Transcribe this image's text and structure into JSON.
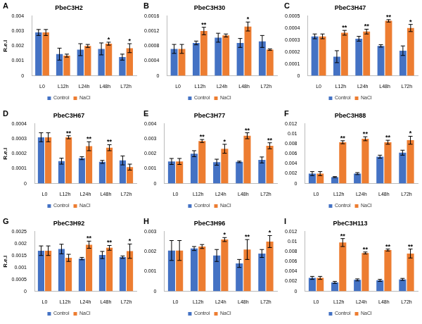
{
  "chart_data": [
    {
      "type": "bar",
      "panel": "A",
      "title": "PbeC3H2",
      "y_label": "R.e.l",
      "categories": [
        "L0",
        "L12h",
        "L24h",
        "L48h",
        "L72h"
      ],
      "series": [
        {
          "name": "Control",
          "color": "#4472c4",
          "values": [
            0.0029,
            0.00145,
            0.00175,
            0.0018,
            0.00125
          ],
          "errors": [
            0.0002,
            0.0004,
            0.0004,
            0.0004,
            0.0002
          ]
        },
        {
          "name": "NaCl",
          "color": "#ed7d31",
          "values": [
            0.0029,
            0.00135,
            0.002,
            0.00215,
            0.00185
          ],
          "errors": [
            0.0002,
            0.0001,
            0.0001,
            0.0001,
            0.0003
          ],
          "significance": [
            null,
            null,
            null,
            "*",
            "*"
          ]
        }
      ],
      "ylim": [
        0,
        0.004
      ],
      "yticks": [
        0,
        0.001,
        0.002,
        0.003,
        0.004
      ],
      "grid": false,
      "legend": "bottom"
    },
    {
      "type": "bar",
      "panel": "B",
      "title": "PbeC3H30",
      "categories": [
        "L0",
        "L12h",
        "L24h",
        "L48h",
        "L72h"
      ],
      "series": [
        {
          "name": "Control",
          "color": "#4472c4",
          "values": [
            0.00072,
            0.00088,
            0.00102,
            0.00088,
            0.00092
          ],
          "errors": [
            0.00012,
            5e-05,
            0.00012,
            0.00012,
            0.00016
          ]
        },
        {
          "name": "NaCl",
          "color": "#ed7d31",
          "values": [
            0.00072,
            0.0012,
            0.00108,
            0.00132,
            0.0007
          ],
          "errors": [
            0.00012,
            0.0001,
            4e-05,
            0.00012,
            2e-05
          ],
          "significance": [
            null,
            "**",
            null,
            "*",
            null
          ]
        }
      ],
      "ylim": [
        0,
        0.0016
      ],
      "yticks": [
        0,
        0.0004,
        0.0008,
        0.0012,
        0.0016
      ],
      "grid": false,
      "legend": "bottom"
    },
    {
      "type": "bar",
      "panel": "C",
      "title": "PbeC3H47",
      "categories": [
        "L0",
        "L12h",
        "L24h",
        "L48h",
        "L72h"
      ],
      "series": [
        {
          "name": "Control",
          "color": "#4472c4",
          "values": [
            0.00033,
            0.00016,
            0.00031,
            0.00025,
            0.00021
          ],
          "errors": [
            2e-05,
            5e-05,
            2e-05,
            1e-05,
            4e-05
          ]
        },
        {
          "name": "NaCl",
          "color": "#ed7d31",
          "values": [
            0.00033,
            0.00036,
            0.00037,
            0.00046,
            0.0004
          ],
          "errors": [
            2e-05,
            2e-05,
            2e-05,
            1e-05,
            3e-05
          ],
          "significance": [
            null,
            "**",
            "**",
            "**",
            "*"
          ]
        }
      ],
      "ylim": [
        0,
        0.0005
      ],
      "yticks": [
        0,
        0.0001,
        0.0002,
        0.0003,
        0.0004,
        0.0005
      ],
      "grid": false,
      "legend": "bottom"
    },
    {
      "type": "bar",
      "panel": "D",
      "title": "PbeC3H67",
      "y_label": "R.e.l",
      "categories": [
        "L0",
        "L12h",
        "L24h",
        "L48h",
        "L72h"
      ],
      "series": [
        {
          "name": "Control",
          "color": "#4472c4",
          "values": [
            0.00031,
            0.00015,
            0.00017,
            0.000145,
            0.000155
          ],
          "errors": [
            3e-05,
            2e-05,
            1e-05,
            1e-05,
            3e-05
          ]
        },
        {
          "name": "NaCl",
          "color": "#ed7d31",
          "values": [
            0.00031,
            0.00031,
            0.00025,
            0.00024,
            0.00011
          ],
          "errors": [
            3e-05,
            1e-05,
            3e-05,
            2e-05,
            2e-05
          ],
          "significance": [
            null,
            "**",
            "**",
            "**",
            null
          ]
        }
      ],
      "ylim": [
        0,
        0.0004
      ],
      "yticks": [
        0,
        0.0001,
        0.0002,
        0.0003,
        0.0004
      ],
      "grid": false,
      "legend": "bottom"
    },
    {
      "type": "bar",
      "panel": "E",
      "title": "PbeC3H77",
      "categories": [
        "L0",
        "L12h",
        "L24h",
        "L48h",
        "L72h"
      ],
      "series": [
        {
          "name": "Control",
          "color": "#4472c4",
          "values": [
            0.00148,
            0.002,
            0.00143,
            0.00145,
            0.00158
          ],
          "errors": [
            0.0002,
            0.0002,
            0.0002,
            5e-05,
            0.0002
          ]
        },
        {
          "name": "NaCl",
          "color": "#ed7d31",
          "values": [
            0.00148,
            0.00285,
            0.00233,
            0.0032,
            0.00253
          ],
          "errors": [
            0.0002,
            0.0001,
            0.0003,
            0.0002,
            0.0002
          ],
          "significance": [
            null,
            "**",
            "*",
            "**",
            "**"
          ]
        }
      ],
      "ylim": [
        0,
        0.004
      ],
      "yticks": [
        0,
        0.001,
        0.002,
        0.003,
        0.004
      ],
      "grid": false,
      "legend": "bottom"
    },
    {
      "type": "bar",
      "panel": "F",
      "title": "PbeC3H88",
      "categories": [
        "L0",
        "L12h",
        "L24h",
        "L48h",
        "L72h"
      ],
      "series": [
        {
          "name": "Control",
          "color": "#4472c4",
          "values": [
            0.002,
            0.0013,
            0.002,
            0.0054,
            0.0062
          ],
          "errors": [
            0.0004,
            0.0001,
            0.0002,
            0.0003,
            0.0005
          ]
        },
        {
          "name": "NaCl",
          "color": "#ed7d31",
          "values": [
            0.002,
            0.0083,
            0.009,
            0.0083,
            0.0087
          ],
          "errors": [
            0.0004,
            0.0003,
            0.0004,
            0.0004,
            0.0008
          ],
          "significance": [
            null,
            "**",
            "**",
            "**",
            "*"
          ]
        }
      ],
      "ylim": [
        0,
        0.012
      ],
      "yticks": [
        0,
        0.002,
        0.004,
        0.006,
        0.008,
        0.01,
        0.012
      ],
      "grid": false,
      "legend": "bottom"
    },
    {
      "type": "bar",
      "panel": "G",
      "title": "PbeC3H92",
      "y_label": "R.e.l",
      "categories": [
        "L0",
        "L12h",
        "L24h",
        "L48h",
        "L72h"
      ],
      "series": [
        {
          "name": "Control",
          "color": "#4472c4",
          "values": [
            0.0017,
            0.00177,
            0.00137,
            0.00152,
            0.00143
          ],
          "errors": [
            0.0002,
            0.0002,
            5e-05,
            0.00015,
            5e-05
          ]
        },
        {
          "name": "NaCl",
          "color": "#ed7d31",
          "values": [
            0.0017,
            0.0014,
            0.00195,
            0.00182,
            0.00168
          ],
          "errors": [
            0.0002,
            0.00015,
            0.00015,
            0.0001,
            0.0003
          ],
          "significance": [
            null,
            null,
            "**",
            "**",
            "*"
          ]
        }
      ],
      "ylim": [
        0,
        0.0025
      ],
      "yticks": [
        0,
        0.0005,
        0.001,
        0.0015,
        0.002,
        0.0025
      ],
      "grid": false,
      "legend": "bottom"
    },
    {
      "type": "bar",
      "panel": "H",
      "title": "PbeC3H96",
      "categories": [
        "L0",
        "L12h",
        "L24h",
        "L48h",
        "L72h"
      ],
      "series": [
        {
          "name": "Control",
          "color": "#4472c4",
          "values": [
            0.00205,
            0.00215,
            0.0018,
            0.0014,
            0.0019
          ],
          "errors": [
            0.0005,
            0.0001,
            0.0003,
            0.0002,
            0.0002
          ]
        },
        {
          "name": "NaCl",
          "color": "#ed7d31",
          "values": [
            0.00205,
            0.00225,
            0.0026,
            0.0021,
            0.0025
          ],
          "errors": [
            0.0005,
            0.0001,
            0.0001,
            0.0005,
            0.0003
          ],
          "significance": [
            null,
            null,
            "*",
            "**",
            "*"
          ]
        }
      ],
      "ylim": [
        0,
        0.003
      ],
      "yticks": [
        0,
        0.001,
        0.002,
        0.003
      ],
      "grid": false,
      "legend": "bottom"
    },
    {
      "type": "bar",
      "panel": "I",
      "title": "PbeC3H113",
      "categories": [
        "L0",
        "L12h",
        "L24h",
        "L48h",
        "L72h"
      ],
      "series": [
        {
          "name": "Control",
          "color": "#4472c4",
          "values": [
            0.0027,
            0.0018,
            0.0023,
            0.0022,
            0.0024
          ],
          "errors": [
            0.0003,
            0.0002,
            0.0002,
            0.0002,
            0.0002
          ]
        },
        {
          "name": "NaCl",
          "color": "#ed7d31",
          "values": [
            0.0027,
            0.0098,
            0.0077,
            0.0083,
            0.0076
          ],
          "errors": [
            0.0003,
            0.0008,
            0.0002,
            0.0002,
            0.0009
          ],
          "significance": [
            null,
            "**",
            "**",
            "**",
            "**"
          ]
        }
      ],
      "ylim": [
        0,
        0.012
      ],
      "yticks": [
        0,
        0.002,
        0.004,
        0.006,
        0.008,
        0.01,
        0.012
      ],
      "grid": false,
      "legend": "bottom"
    }
  ]
}
